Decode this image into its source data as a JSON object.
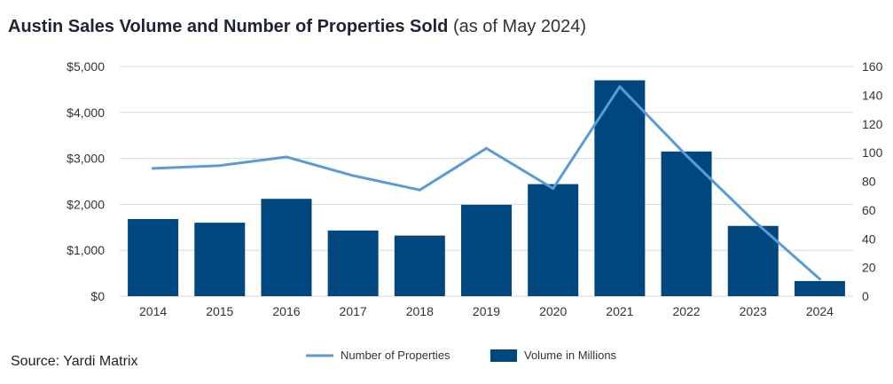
{
  "title": {
    "main": "Austin Sales Volume and Number of Properties Sold",
    "sub": "(as of May 2024)"
  },
  "source": "Source: Yardi Matrix",
  "colors": {
    "bar": "#00467f",
    "line": "#5b9bd5",
    "grid": "#d9d9d9"
  },
  "chart_data": {
    "type": "bar",
    "categories": [
      "2014",
      "2015",
      "2016",
      "2017",
      "2018",
      "2019",
      "2020",
      "2021",
      "2022",
      "2023",
      "2024"
    ],
    "series": [
      {
        "name": "Volume in Millions",
        "type": "bar",
        "axis": "left",
        "values": [
          1680,
          1600,
          2120,
          1430,
          1320,
          1990,
          2440,
          4700,
          3150,
          1530,
          330
        ]
      },
      {
        "name": "Number of Properties",
        "type": "line",
        "axis": "right",
        "values": [
          89,
          91,
          97,
          84,
          74,
          103,
          75,
          146,
          98,
          53,
          12
        ]
      }
    ],
    "y_left": {
      "ylim": [
        0,
        5000
      ],
      "ticks": [
        0,
        1000,
        2000,
        3000,
        4000,
        5000
      ],
      "tick_labels": [
        "$0",
        "$1,000",
        "$2,000",
        "$3,000",
        "$4,000",
        "$5,000"
      ]
    },
    "y_right": {
      "ylim": [
        0,
        160
      ],
      "ticks": [
        0,
        20,
        40,
        60,
        80,
        100,
        120,
        140,
        160
      ],
      "tick_labels": [
        "0",
        "20",
        "40",
        "60",
        "80",
        "100",
        "120",
        "140",
        "160"
      ]
    },
    "grid": true,
    "legend_position": "bottom"
  }
}
